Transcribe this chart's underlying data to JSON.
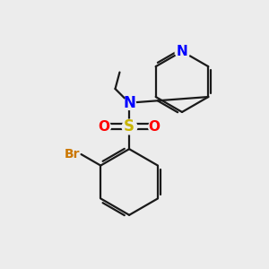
{
  "background_color": "#ececec",
  "bond_color": "#1a1a1a",
  "N_color": "#0000ff",
  "S_color": "#c8b400",
  "O_color": "#ff0000",
  "Br_color": "#cc7700",
  "figsize": [
    3.0,
    3.0
  ],
  "dpi": 100,
  "xlim": [
    0,
    10
  ],
  "ylim": [
    0,
    10
  ]
}
